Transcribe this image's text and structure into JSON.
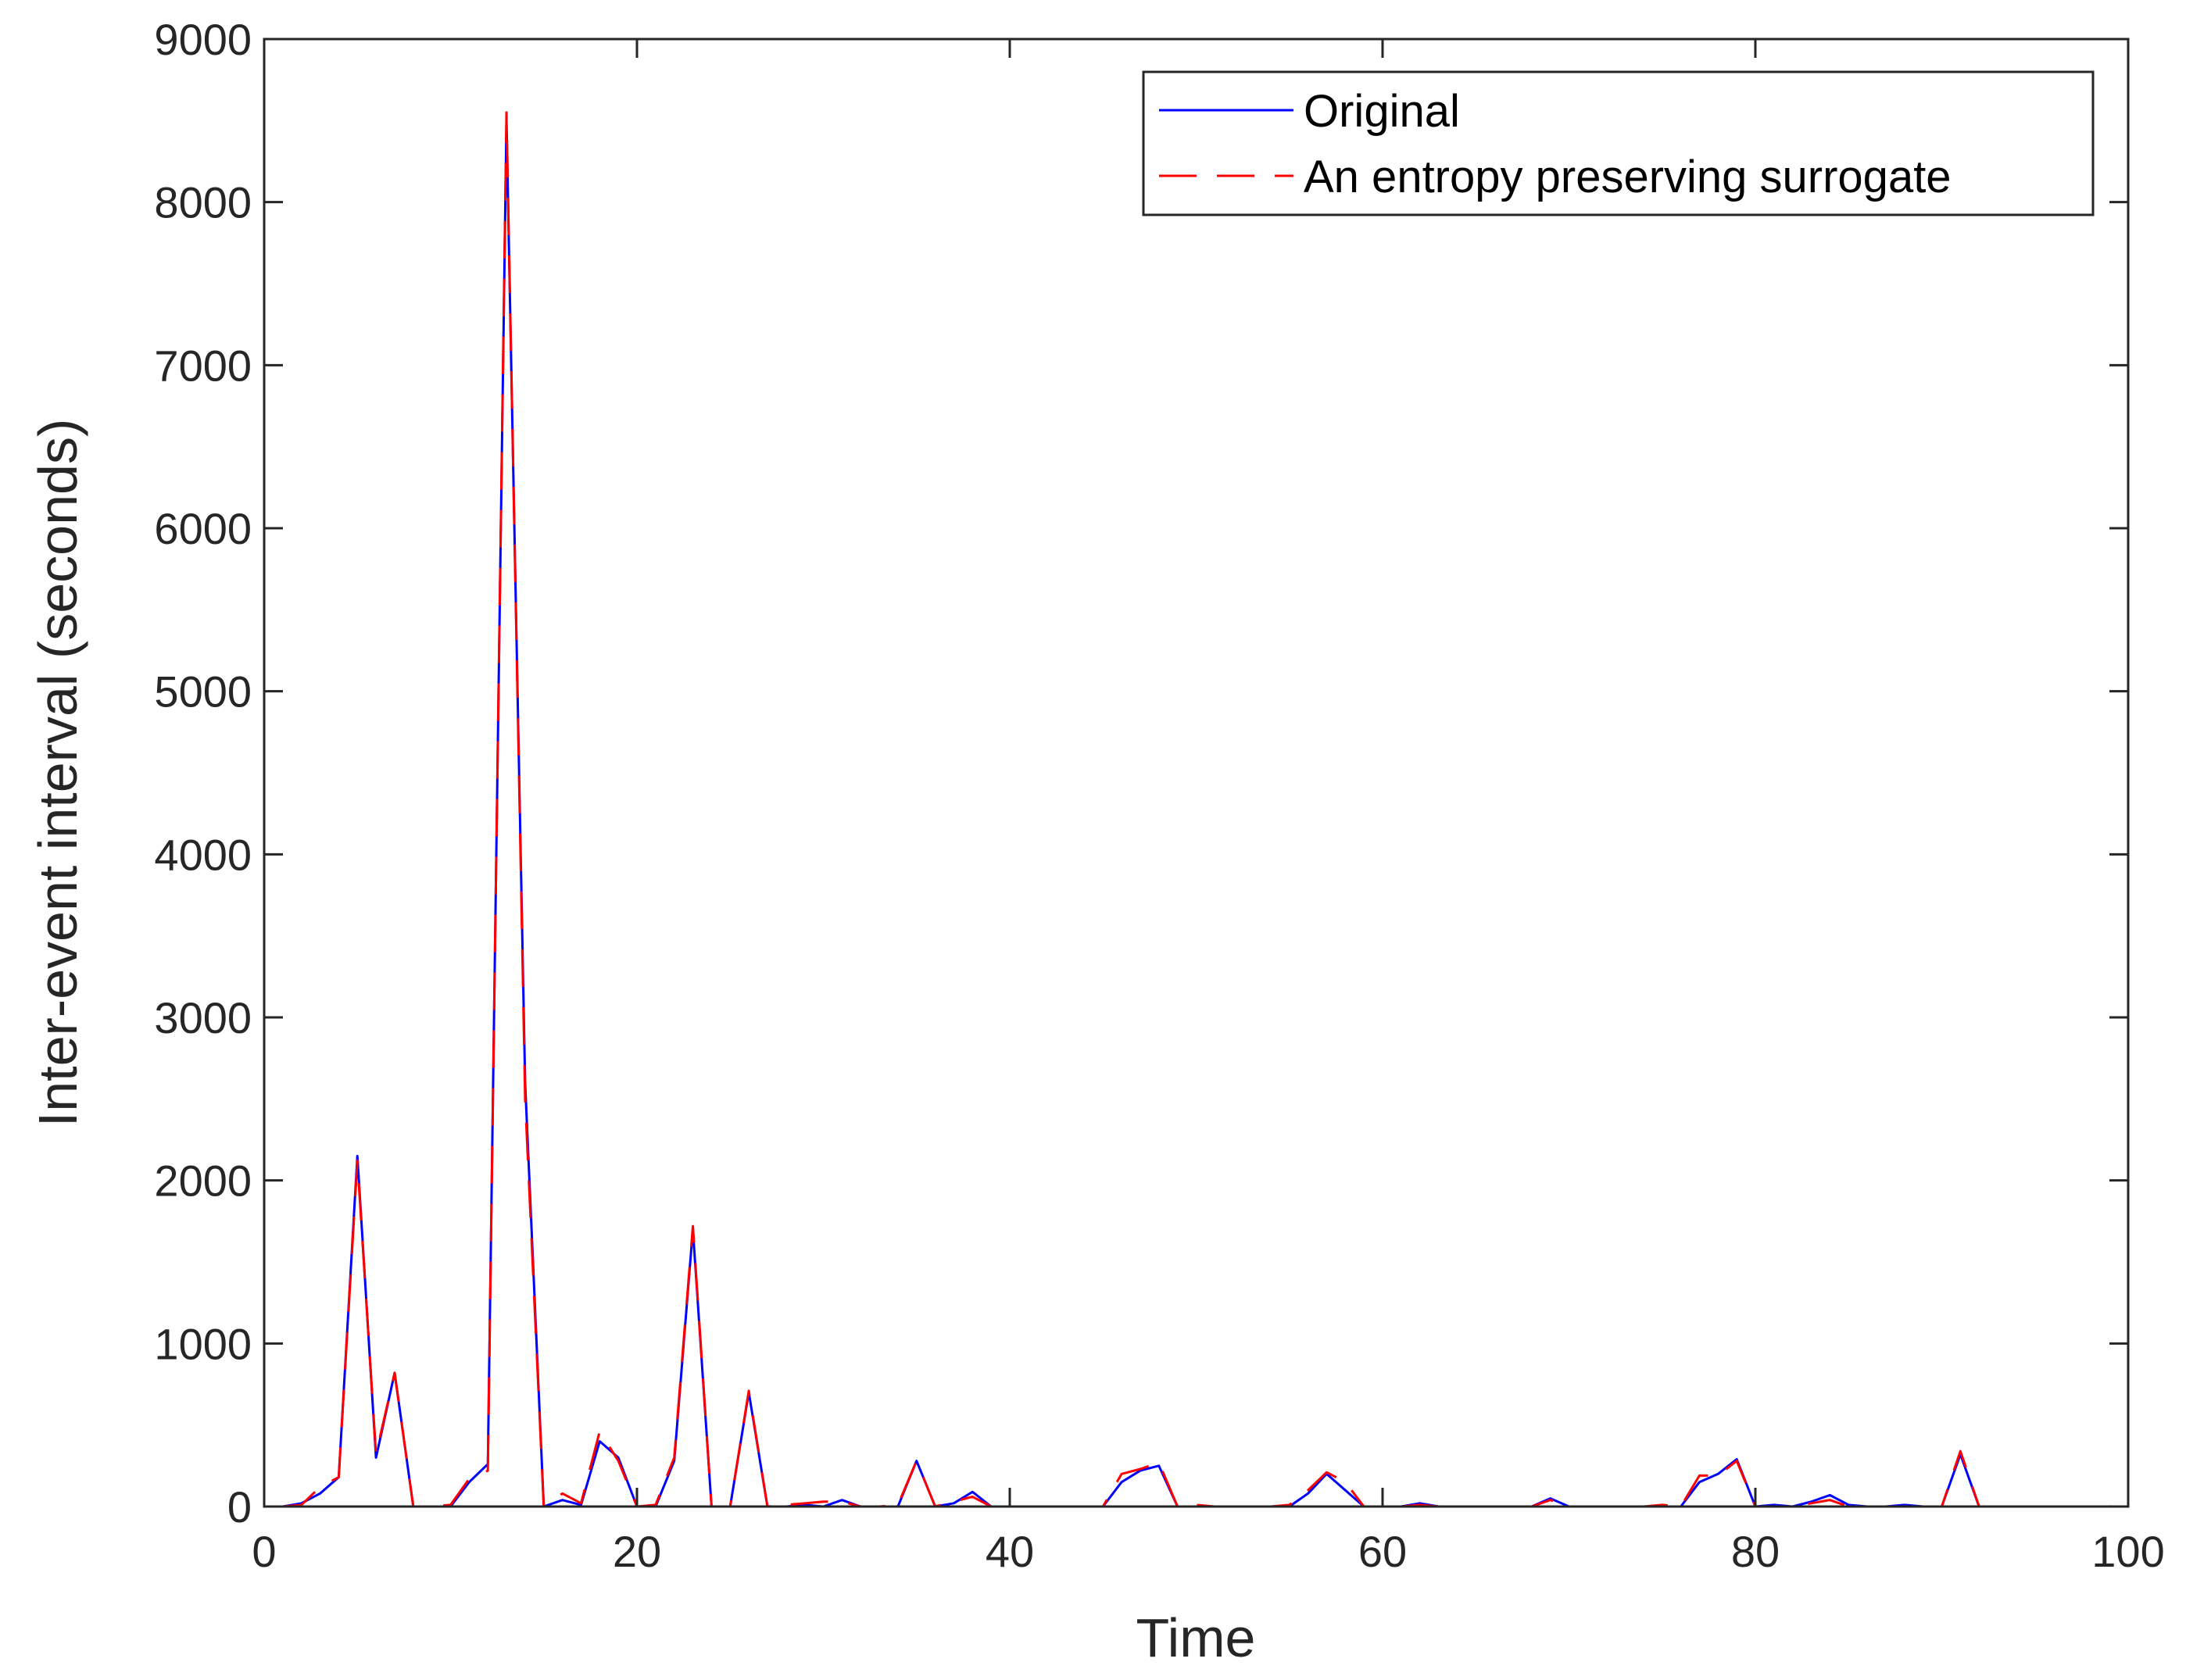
{
  "chart_data": {
    "type": "line",
    "title": "",
    "xlabel": "Time",
    "ylabel": "Inter-event interval (seconds)",
    "xlim": [
      0,
      100
    ],
    "ylim": [
      0,
      9000
    ],
    "xticks": [
      0,
      20,
      40,
      60,
      80,
      100
    ],
    "yticks": [
      0,
      1000,
      2000,
      3000,
      4000,
      5000,
      6000,
      7000,
      8000,
      9000
    ],
    "grid": false,
    "legend_position": "top-right",
    "colors": {
      "original": "#0000ff",
      "surrogate": "#ff0000",
      "axis": "#262626"
    },
    "x": [
      1,
      2,
      3,
      4,
      5,
      6,
      7,
      8,
      9,
      10,
      11,
      12,
      13,
      14,
      15,
      16,
      17,
      18,
      19,
      20,
      21,
      22,
      23,
      24,
      25,
      26,
      27,
      28,
      29,
      30,
      31,
      32,
      33,
      34,
      35,
      36,
      37,
      38,
      39,
      40,
      41,
      42,
      43,
      44,
      45,
      46,
      47,
      48,
      49,
      50,
      51,
      52,
      53,
      54,
      55,
      56,
      57,
      58,
      59,
      60,
      61,
      62,
      63,
      64,
      65,
      66,
      67,
      68,
      69,
      70,
      71,
      72,
      73,
      74,
      75,
      76,
      77,
      78,
      79,
      80,
      81,
      82,
      83,
      84,
      85,
      86,
      87,
      88,
      89,
      90,
      91,
      92,
      93,
      94,
      95,
      96,
      97,
      98,
      99,
      100
    ],
    "series": [
      {
        "name": "Original",
        "style": "solid",
        "color": "#0000ff",
        "values": [
          0,
          20,
          80,
          180,
          2150,
          300,
          820,
          0,
          0,
          0,
          150,
          260,
          8500,
          2600,
          0,
          40,
          10,
          400,
          300,
          0,
          0,
          280,
          1700,
          0,
          0,
          700,
          0,
          0,
          10,
          0,
          40,
          0,
          0,
          0,
          280,
          0,
          20,
          90,
          0,
          0,
          0,
          0,
          0,
          0,
          0,
          150,
          220,
          250,
          0,
          0,
          0,
          0,
          0,
          0,
          0,
          80,
          200,
          100,
          0,
          0,
          0,
          20,
          0,
          0,
          0,
          0,
          0,
          0,
          50,
          0,
          0,
          0,
          0,
          0,
          0,
          0,
          150,
          200,
          290,
          0,
          10,
          0,
          30,
          70,
          10,
          0,
          0,
          10,
          0,
          0,
          320,
          0,
          0,
          0,
          0,
          0,
          0,
          0,
          0,
          0
        ]
      },
      {
        "name": "An entropy preserving surrogate",
        "style": "dashed",
        "color": "#ff0000",
        "values": [
          0,
          10,
          120,
          180,
          2120,
          320,
          820,
          0,
          0,
          10,
          170,
          220,
          8550,
          2500,
          0,
          80,
          20,
          460,
          280,
          0,
          10,
          300,
          1720,
          0,
          0,
          710,
          0,
          10,
          20,
          30,
          30,
          0,
          0,
          10,
          280,
          0,
          30,
          60,
          0,
          0,
          0,
          0,
          0,
          0,
          0,
          200,
          230,
          270,
          0,
          10,
          0,
          0,
          0,
          0,
          10,
          100,
          210,
          150,
          0,
          0,
          0,
          10,
          0,
          0,
          0,
          0,
          0,
          0,
          40,
          0,
          0,
          0,
          0,
          0,
          10,
          0,
          190,
          190,
          280,
          0,
          0,
          0,
          20,
          40,
          0,
          0,
          0,
          0,
          0,
          0,
          340,
          0,
          0,
          0,
          0,
          0,
          0,
          0,
          0,
          10
        ]
      }
    ]
  }
}
